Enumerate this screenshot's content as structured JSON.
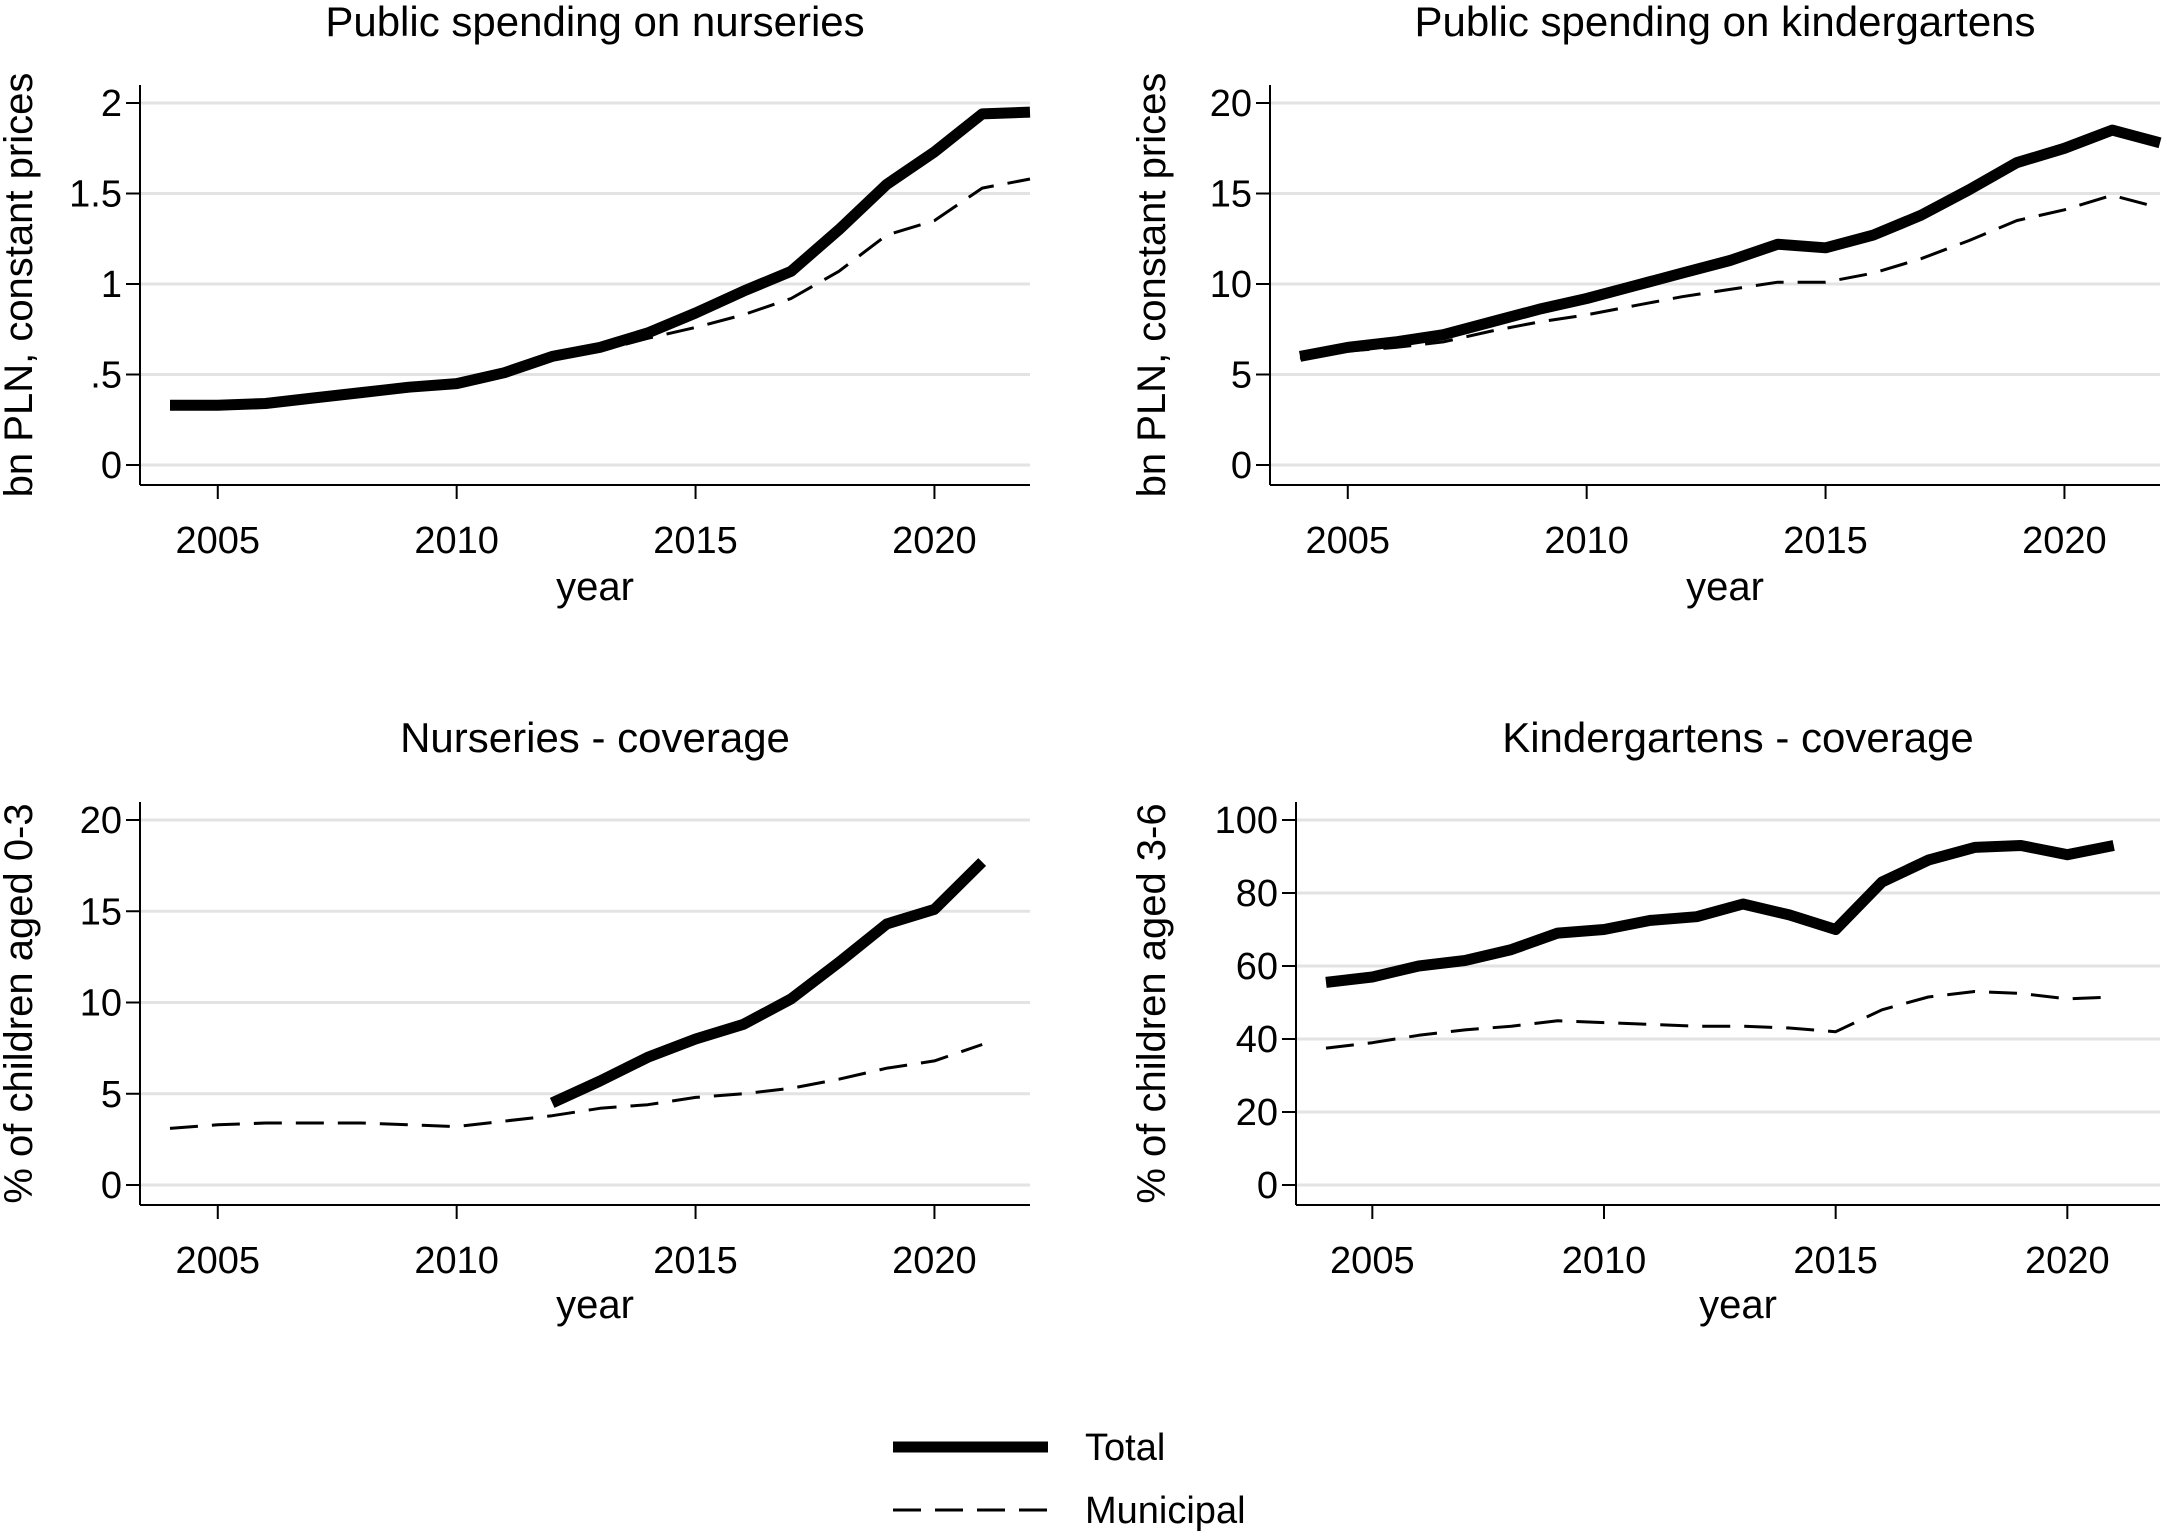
{
  "chart_data": [
    {
      "type": "line",
      "title": "Public spending on nurseries",
      "xlabel": "year",
      "ylabel": "bn PLN, constant prices",
      "xlim": [
        2004,
        2022
      ],
      "ylim": [
        0,
        2
      ],
      "xticks": [
        2005,
        2010,
        2015,
        2020
      ],
      "xtick_labels": [
        "2005",
        "2010",
        "2015",
        "2020"
      ],
      "yticks": [
        0,
        0.5,
        1,
        1.5,
        2
      ],
      "ytick_labels": [
        "0",
        ".5",
        "1",
        "1.5",
        "2"
      ],
      "grid": true,
      "series": [
        {
          "name": "Total",
          "x": [
            2004,
            2005,
            2006,
            2007,
            2008,
            2009,
            2010,
            2011,
            2012,
            2013,
            2014,
            2015,
            2016,
            2017,
            2018,
            2019,
            2020,
            2021,
            2022
          ],
          "values": [
            0.33,
            0.33,
            0.34,
            0.37,
            0.4,
            0.43,
            0.45,
            0.51,
            0.6,
            0.65,
            0.73,
            0.84,
            0.96,
            1.07,
            1.3,
            1.55,
            1.73,
            1.94,
            1.95
          ]
        },
        {
          "name": "Municipal",
          "x": [
            2004,
            2005,
            2006,
            2007,
            2008,
            2009,
            2010,
            2011,
            2012,
            2013,
            2014,
            2015,
            2016,
            2017,
            2018,
            2019,
            2020,
            2021,
            2022
          ],
          "values": [
            0.33,
            0.33,
            0.34,
            0.37,
            0.4,
            0.43,
            0.45,
            0.51,
            0.6,
            0.63,
            0.7,
            0.76,
            0.83,
            0.92,
            1.07,
            1.27,
            1.35,
            1.53,
            1.58
          ]
        }
      ]
    },
    {
      "type": "line",
      "title": "Public spending on kindergartens",
      "xlabel": "year",
      "ylabel": "bn PLN, constant prices",
      "xlim": [
        2004,
        2022
      ],
      "ylim": [
        0,
        20
      ],
      "xticks": [
        2005,
        2010,
        2015,
        2020
      ],
      "xtick_labels": [
        "2005",
        "2010",
        "2015",
        "2020"
      ],
      "yticks": [
        0,
        5,
        10,
        15,
        20
      ],
      "ytick_labels": [
        "0",
        "5",
        "10",
        "15",
        "20"
      ],
      "grid": true,
      "series": [
        {
          "name": "Total",
          "x": [
            2004,
            2005,
            2006,
            2007,
            2008,
            2009,
            2010,
            2011,
            2012,
            2013,
            2014,
            2015,
            2016,
            2017,
            2018,
            2019,
            2020,
            2021,
            2022
          ],
          "values": [
            6.0,
            6.5,
            6.8,
            7.2,
            7.9,
            8.6,
            9.2,
            9.9,
            10.6,
            11.3,
            12.2,
            12.0,
            12.7,
            13.8,
            15.2,
            16.7,
            17.5,
            18.5,
            17.8
          ]
        },
        {
          "name": "Municipal",
          "x": [
            2004,
            2005,
            2006,
            2007,
            2008,
            2009,
            2010,
            2011,
            2012,
            2013,
            2014,
            2015,
            2016,
            2017,
            2018,
            2019,
            2020,
            2021,
            2022
          ],
          "values": [
            5.9,
            6.3,
            6.5,
            6.8,
            7.4,
            7.9,
            8.3,
            8.8,
            9.3,
            9.7,
            10.1,
            10.1,
            10.6,
            11.4,
            12.4,
            13.5,
            14.1,
            14.9,
            14.2
          ]
        }
      ]
    },
    {
      "type": "line",
      "title": "Nurseries - coverage",
      "xlabel": "year",
      "ylabel": "% of children aged 0-3",
      "xlim": [
        2004,
        2022
      ],
      "ylim": [
        0,
        20
      ],
      "xticks": [
        2005,
        2010,
        2015,
        2020
      ],
      "xtick_labels": [
        "2005",
        "2010",
        "2015",
        "2020"
      ],
      "yticks": [
        0,
        5,
        10,
        15,
        20
      ],
      "ytick_labels": [
        "0",
        "5",
        "10",
        "15",
        "20"
      ],
      "grid": true,
      "series": [
        {
          "name": "Total",
          "x": [
            2012,
            2013,
            2014,
            2015,
            2016,
            2017,
            2018,
            2019,
            2020,
            2021
          ],
          "values": [
            4.5,
            5.7,
            7.0,
            8.0,
            8.8,
            10.2,
            12.2,
            14.3,
            15.1,
            17.7
          ]
        },
        {
          "name": "Municipal",
          "x": [
            2004,
            2005,
            2006,
            2007,
            2008,
            2009,
            2010,
            2011,
            2012,
            2013,
            2014,
            2015,
            2016,
            2017,
            2018,
            2019,
            2020,
            2021
          ],
          "values": [
            3.1,
            3.3,
            3.4,
            3.4,
            3.4,
            3.3,
            3.2,
            3.5,
            3.8,
            4.2,
            4.4,
            4.8,
            5.0,
            5.3,
            5.8,
            6.4,
            6.8,
            7.7
          ]
        }
      ]
    },
    {
      "type": "line",
      "title": "Kindergartens - coverage",
      "xlabel": "year",
      "ylabel": "% of children aged 3-6",
      "xlim": [
        2004,
        2022
      ],
      "ylim": [
        0,
        100
      ],
      "xticks": [
        2005,
        2010,
        2015,
        2020
      ],
      "xtick_labels": [
        "2005",
        "2010",
        "2015",
        "2020"
      ],
      "yticks": [
        0,
        20,
        40,
        60,
        80,
        100
      ],
      "ytick_labels": [
        "0",
        "20",
        "40",
        "60",
        "80",
        "100"
      ],
      "grid": true,
      "series": [
        {
          "name": "Total",
          "x": [
            2004,
            2005,
            2006,
            2007,
            2008,
            2009,
            2010,
            2011,
            2012,
            2013,
            2014,
            2015,
            2016,
            2017,
            2018,
            2019,
            2020,
            2021
          ],
          "values": [
            55.5,
            57.0,
            60.0,
            61.5,
            64.5,
            69.0,
            70.0,
            72.5,
            73.5,
            77.0,
            74.0,
            70.0,
            83.0,
            89.0,
            92.5,
            93.0,
            90.5,
            93.0
          ]
        },
        {
          "name": "Municipal",
          "x": [
            2004,
            2005,
            2006,
            2007,
            2008,
            2009,
            2010,
            2011,
            2012,
            2013,
            2014,
            2015,
            2016,
            2017,
            2018,
            2019,
            2020,
            2021
          ],
          "values": [
            37.5,
            39.0,
            41.0,
            42.5,
            43.5,
            45.0,
            44.5,
            44.0,
            43.5,
            43.5,
            43.0,
            42.0,
            48.0,
            51.5,
            53.0,
            52.5,
            51.0,
            51.5
          ]
        }
      ]
    }
  ],
  "legend": {
    "placement": "bottom-center",
    "items": [
      {
        "label": "Total",
        "style": "thick-solid"
      },
      {
        "label": "Municipal",
        "style": "thin-dashed"
      }
    ]
  },
  "colors": {
    "line": "#000000",
    "grid": "#e3e3e3",
    "background": "#ffffff"
  }
}
